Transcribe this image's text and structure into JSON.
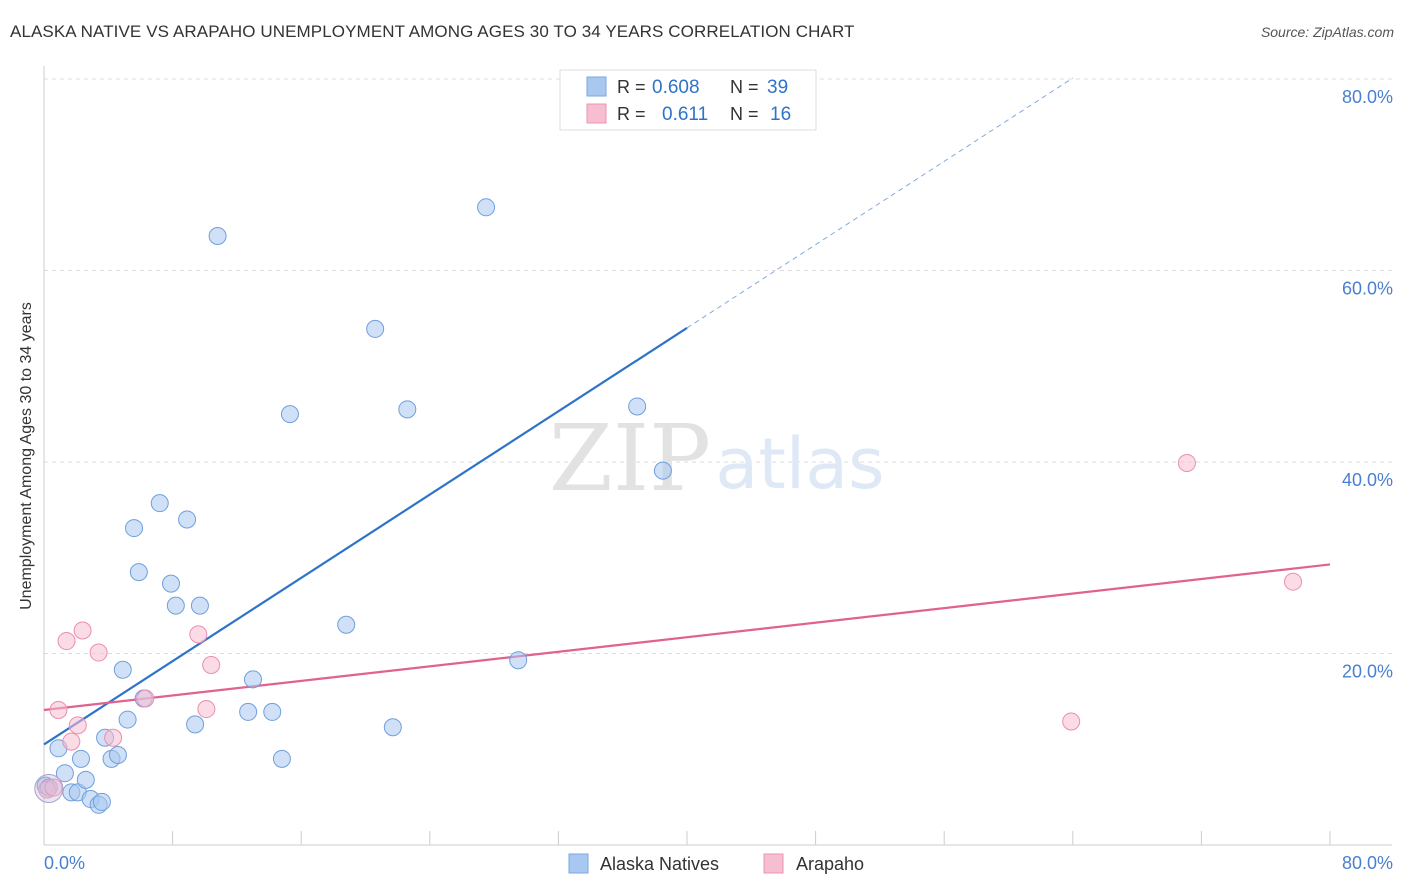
{
  "header": {
    "title": "ALASKA NATIVE VS ARAPAHO UNEMPLOYMENT AMONG AGES 30 TO 34 YEARS CORRELATION CHART",
    "source": "Source: ZipAtlas.com"
  },
  "watermark": {
    "zip": "ZIP",
    "atlas": "atlas"
  },
  "legend_box": [
    {
      "r_label": "R =",
      "r_value": "0.608",
      "n_label": "N =",
      "n_value": "39",
      "color": "#a9c8f0",
      "stroke": "#7aa7df"
    },
    {
      "r_label": "R =",
      "r_value": "0.611",
      "n_label": "N =",
      "n_value": "16",
      "color": "#f7bdd0",
      "stroke": "#ec94b0"
    }
  ],
  "chart_data": {
    "type": "scatter",
    "title": "ALASKA NATIVE VS ARAPAHO UNEMPLOYMENT AMONG AGES 30 TO 34 YEARS CORRELATION CHART",
    "xlabel": "",
    "ylabel": "Unemployment Among Ages 30 to 34 years",
    "xlim": [
      0,
      80
    ],
    "ylim": [
      0,
      80
    ],
    "x_tick_labels": [
      "0.0%",
      "80.0%"
    ],
    "y_tick_labels": [
      "20.0%",
      "40.0%",
      "60.0%",
      "80.0%"
    ],
    "y_ticks": [
      20,
      40,
      60,
      80
    ],
    "grid": true,
    "legend_position": "bottom-center",
    "series": [
      {
        "name": "Alaska Natives",
        "color": "#a9c8f0",
        "edge": "#6f9fdc",
        "line_color": "#2f73c9",
        "trend": {
          "x": [
            0,
            40
          ],
          "y": [
            10.5,
            54.0
          ]
        },
        "trend_ext": {
          "x": [
            40,
            64
          ],
          "y": [
            54.0,
            80.1
          ]
        },
        "points": [
          [
            0.1,
            6.2
          ],
          [
            0.3,
            6.0
          ],
          [
            0.9,
            10.1
          ],
          [
            1.3,
            7.5
          ],
          [
            1.7,
            5.5
          ],
          [
            2.1,
            5.5
          ],
          [
            2.3,
            9.0
          ],
          [
            2.6,
            6.8
          ],
          [
            2.9,
            4.8
          ],
          [
            3.4,
            4.2
          ],
          [
            3.6,
            4.5
          ],
          [
            3.8,
            11.2
          ],
          [
            4.2,
            9.0
          ],
          [
            4.6,
            9.4
          ],
          [
            4.9,
            18.3
          ],
          [
            5.2,
            13.1
          ],
          [
            5.6,
            33.1
          ],
          [
            5.9,
            28.5
          ],
          [
            6.2,
            15.3
          ],
          [
            7.2,
            35.7
          ],
          [
            7.9,
            27.3
          ],
          [
            8.2,
            25.0
          ],
          [
            8.9,
            34.0
          ],
          [
            9.4,
            12.6
          ],
          [
            9.7,
            25.0
          ],
          [
            10.8,
            63.6
          ],
          [
            13.0,
            17.3
          ],
          [
            12.7,
            13.9
          ],
          [
            14.2,
            13.9
          ],
          [
            14.8,
            9.0
          ],
          [
            15.3,
            45.0
          ],
          [
            18.8,
            23.0
          ],
          [
            20.6,
            53.9
          ],
          [
            21.7,
            12.3
          ],
          [
            22.6,
            45.5
          ],
          [
            27.5,
            66.6
          ],
          [
            29.5,
            19.3
          ],
          [
            36.9,
            45.8
          ],
          [
            38.5,
            39.1
          ]
        ]
      },
      {
        "name": "Arapaho",
        "color": "#f7bdd0",
        "edge": "#ea8fae",
        "line_color": "#e0628d",
        "trend": {
          "x": [
            0,
            80
          ],
          "y": [
            14.1,
            29.3
          ]
        },
        "points": [
          [
            0.2,
            5.8
          ],
          [
            0.6,
            6.0
          ],
          [
            0.9,
            14.1
          ],
          [
            1.4,
            21.3
          ],
          [
            1.7,
            10.8
          ],
          [
            2.1,
            12.5
          ],
          [
            2.4,
            22.4
          ],
          [
            3.4,
            20.1
          ],
          [
            4.3,
            11.2
          ],
          [
            6.3,
            15.3
          ],
          [
            9.6,
            22.0
          ],
          [
            10.1,
            14.2
          ],
          [
            10.4,
            18.8
          ],
          [
            63.9,
            12.9
          ],
          [
            71.1,
            39.9
          ],
          [
            77.7,
            27.5
          ]
        ]
      }
    ]
  }
}
